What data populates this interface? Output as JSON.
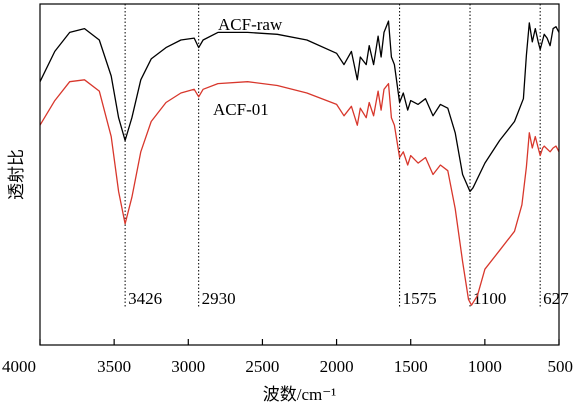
{
  "chart_data": {
    "type": "line",
    "xlabel": "波数/cm⁻¹",
    "ylabel": "透射比",
    "xlim": [
      4000,
      500
    ],
    "x_reversed": true,
    "y_ticks_shown": false,
    "xticks": [
      4000,
      3500,
      3000,
      2500,
      2000,
      1500,
      1000,
      500
    ],
    "grid": false,
    "series": [
      {
        "name": "ACF-raw",
        "color": "#000000",
        "points": [
          [
            4000,
            0.795
          ],
          [
            3900,
            0.875
          ],
          [
            3800,
            0.925
          ],
          [
            3700,
            0.935
          ],
          [
            3600,
            0.905
          ],
          [
            3520,
            0.81
          ],
          [
            3470,
            0.7
          ],
          [
            3426,
            0.64
          ],
          [
            3380,
            0.7
          ],
          [
            3320,
            0.8
          ],
          [
            3250,
            0.855
          ],
          [
            3150,
            0.885
          ],
          [
            3050,
            0.905
          ],
          [
            2960,
            0.91
          ],
          [
            2930,
            0.885
          ],
          [
            2900,
            0.905
          ],
          [
            2800,
            0.925
          ],
          [
            2600,
            0.925
          ],
          [
            2400,
            0.92
          ],
          [
            2200,
            0.905
          ],
          [
            2000,
            0.87
          ],
          [
            1950,
            0.84
          ],
          [
            1900,
            0.875
          ],
          [
            1860,
            0.8
          ],
          [
            1840,
            0.86
          ],
          [
            1800,
            0.84
          ],
          [
            1780,
            0.89
          ],
          [
            1750,
            0.84
          ],
          [
            1720,
            0.915
          ],
          [
            1700,
            0.86
          ],
          [
            1680,
            0.925
          ],
          [
            1650,
            0.955
          ],
          [
            1630,
            0.86
          ],
          [
            1610,
            0.84
          ],
          [
            1575,
            0.74
          ],
          [
            1550,
            0.765
          ],
          [
            1520,
            0.72
          ],
          [
            1500,
            0.745
          ],
          [
            1450,
            0.735
          ],
          [
            1400,
            0.75
          ],
          [
            1350,
            0.705
          ],
          [
            1300,
            0.735
          ],
          [
            1250,
            0.725
          ],
          [
            1200,
            0.66
          ],
          [
            1150,
            0.55
          ],
          [
            1100,
            0.505
          ],
          [
            1080,
            0.515
          ],
          [
            1000,
            0.58
          ],
          [
            900,
            0.64
          ],
          [
            800,
            0.69
          ],
          [
            740,
            0.75
          ],
          [
            720,
            0.865
          ],
          [
            700,
            0.95
          ],
          [
            680,
            0.9
          ],
          [
            660,
            0.935
          ],
          [
            640,
            0.9
          ],
          [
            627,
            0.88
          ],
          [
            610,
            0.905
          ],
          [
            600,
            0.92
          ],
          [
            580,
            0.91
          ],
          [
            560,
            0.89
          ],
          [
            540,
            0.935
          ],
          [
            520,
            0.94
          ],
          [
            500,
            0.925
          ]
        ]
      },
      {
        "name": "ACF-01",
        "color": "#d8372c",
        "points": [
          [
            4000,
            0.68
          ],
          [
            3900,
            0.745
          ],
          [
            3800,
            0.795
          ],
          [
            3700,
            0.8
          ],
          [
            3600,
            0.77
          ],
          [
            3520,
            0.65
          ],
          [
            3470,
            0.505
          ],
          [
            3426,
            0.42
          ],
          [
            3380,
            0.49
          ],
          [
            3320,
            0.61
          ],
          [
            3250,
            0.69
          ],
          [
            3150,
            0.74
          ],
          [
            3050,
            0.765
          ],
          [
            2960,
            0.775
          ],
          [
            2930,
            0.755
          ],
          [
            2900,
            0.775
          ],
          [
            2800,
            0.79
          ],
          [
            2600,
            0.795
          ],
          [
            2400,
            0.785
          ],
          [
            2200,
            0.765
          ],
          [
            2000,
            0.735
          ],
          [
            1950,
            0.705
          ],
          [
            1900,
            0.73
          ],
          [
            1860,
            0.68
          ],
          [
            1840,
            0.725
          ],
          [
            1800,
            0.7
          ],
          [
            1780,
            0.74
          ],
          [
            1750,
            0.705
          ],
          [
            1720,
            0.77
          ],
          [
            1700,
            0.72
          ],
          [
            1680,
            0.775
          ],
          [
            1650,
            0.79
          ],
          [
            1630,
            0.7
          ],
          [
            1610,
            0.68
          ],
          [
            1575,
            0.595
          ],
          [
            1550,
            0.61
          ],
          [
            1520,
            0.575
          ],
          [
            1500,
            0.6
          ],
          [
            1450,
            0.58
          ],
          [
            1400,
            0.595
          ],
          [
            1350,
            0.55
          ],
          [
            1300,
            0.575
          ],
          [
            1250,
            0.56
          ],
          [
            1200,
            0.46
          ],
          [
            1150,
            0.32
          ],
          [
            1110,
            0.22
          ],
          [
            1090,
            0.205
          ],
          [
            1050,
            0.23
          ],
          [
            1000,
            0.3
          ],
          [
            900,
            0.35
          ],
          [
            800,
            0.4
          ],
          [
            750,
            0.47
          ],
          [
            720,
            0.57
          ],
          [
            700,
            0.66
          ],
          [
            680,
            0.62
          ],
          [
            660,
            0.65
          ],
          [
            640,
            0.62
          ],
          [
            627,
            0.6
          ],
          [
            610,
            0.62
          ],
          [
            600,
            0.625
          ],
          [
            560,
            0.61
          ],
          [
            540,
            0.62
          ],
          [
            520,
            0.625
          ],
          [
            500,
            0.61
          ]
        ]
      }
    ],
    "series_labels": [
      "ACF-raw",
      "ACF-01"
    ],
    "peak_markers": [
      {
        "x": 3426,
        "label": "3426"
      },
      {
        "x": 2930,
        "label": "2930"
      },
      {
        "x": 1575,
        "label": "1575"
      },
      {
        "x": 1100,
        "label": "1100"
      },
      {
        "x": 627,
        "label": "627"
      }
    ]
  }
}
